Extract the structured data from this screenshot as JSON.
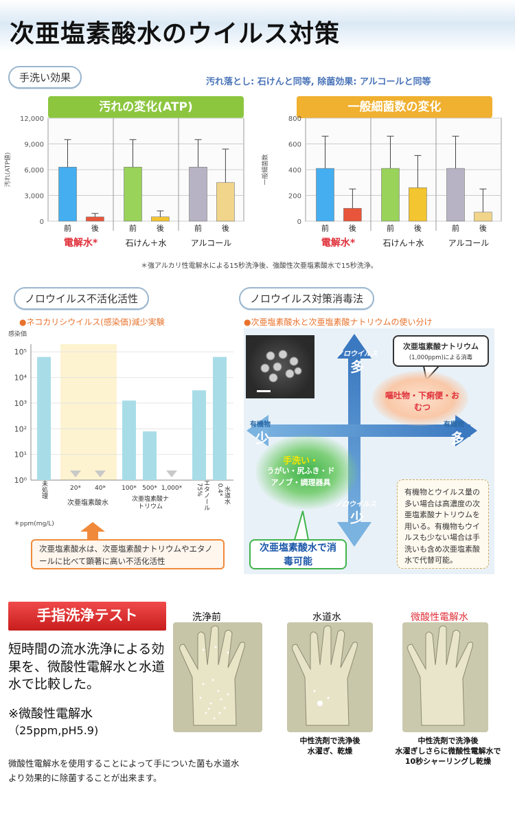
{
  "title": "次亜塩素酸水のウイルス対策",
  "section1": {
    "pill": "手洗い効果",
    "subhead": "汚れ落とし: 石けんと同等, 除菌効果: アルコールと同等",
    "footnote": "＊強アルカリ性電解水による15秒洗浄後、強酸性次亜塩素酸水で15秒洗浄。",
    "charts": [
      {
        "type": "bar",
        "title": "汚れの変化(ATP)",
        "title_color": "#8cc63f",
        "ylabel": "汚れ(ATP値)",
        "yticks": [
          "12,000",
          "9,000",
          "6,000",
          "3,000",
          "0"
        ],
        "ylim": [
          0,
          12000
        ],
        "bar_labels": [
          "前",
          "後",
          "前",
          "後",
          "前",
          "後"
        ],
        "groups": [
          "電解水*",
          "石けん＋水",
          "アルコール"
        ],
        "values": [
          6300,
          500,
          6300,
          500,
          6300,
          4500
        ],
        "errors": [
          3200,
          400,
          3200,
          700,
          3200,
          3900
        ],
        "colors": [
          "#45aef0",
          "#e8553a",
          "#99d35a",
          "#f3c530",
          "#b8b3c4",
          "#f1d58a"
        ]
      },
      {
        "type": "bar",
        "title": "一般細菌数の変化",
        "title_color": "#f0b030",
        "ylabel": "一般細菌数",
        "yticks": [
          "800",
          "600",
          "400",
          "200",
          "0"
        ],
        "ylim": [
          0,
          800
        ],
        "bar_labels": [
          "前",
          "後",
          "前",
          "後",
          "前",
          "後"
        ],
        "groups": [
          "電解水*",
          "石けん＋水",
          "アルコール"
        ],
        "values": [
          410,
          100,
          410,
          260,
          410,
          70
        ],
        "errors": [
          250,
          150,
          250,
          250,
          250,
          180
        ],
        "colors": [
          "#45aef0",
          "#e8553a",
          "#99d35a",
          "#f3c530",
          "#b8b3c4",
          "#f1d58a"
        ]
      }
    ]
  },
  "section2": {
    "pill": "ノロウイルス不活化活性",
    "bullet": "●ネコカリシウイルス(感染価)減少実験",
    "chart_data": {
      "type": "bar",
      "ylabel": "感染価",
      "yticks": [
        "10⁵",
        "10⁴",
        "10³",
        "10²",
        "10¹",
        "10⁰"
      ],
      "log_scale": true,
      "ylim": [
        0,
        5.3
      ],
      "categories": [
        "未処理",
        "20*",
        "40*",
        "100*",
        "500*",
        "1,000*",
        "75%",
        "0.4*"
      ],
      "values": [
        4.8,
        0,
        0,
        3.1,
        1.9,
        0,
        3.5,
        4.8
      ],
      "group_labels": [
        "次亜塩素酸水",
        "次亜塩素酸ナトリウム",
        "エタノール",
        "水道水"
      ],
      "unit_note": "＊ppm(mg/L)"
    },
    "callout": "次亜塩素酸水は、次亜塩素酸ナトリウムやエタノールに比べて顕著に高い不活化活性"
  },
  "section3": {
    "pill": "ノロウイルス対策消毒法",
    "bullet": "●次亜塩素酸水と次亜塩素酸ナトリウムの使い分け",
    "axis_top_label": "ノロウイルス",
    "axis_top_value": "多",
    "axis_bottom_label": "ノロウイルス",
    "axis_bottom_value": "少",
    "axis_left_label": "有機物",
    "axis_left_value": "少",
    "axis_right_label": "有機物",
    "axis_right_value": "多",
    "sodium_box_title": "次亜塩素酸ナトリウム",
    "sodium_box_sub": "(1,000ppm)による消毒",
    "orange_blob": "嘔吐物・下痢便・おむつ",
    "green_blob_title": "手洗い・",
    "green_blob_body": "うがい・尻ふき・ドアノブ・調理器具",
    "hypo_box": "次亜塩素酸水で消毒可能",
    "note": "有機物とウイルス量の多い場合は高濃度の次亜塩素酸ナトリウムを用いる。有機物もウイルスも少ない場合は手洗いも含め次亜塩素酸水で代替可能。"
  },
  "section4": {
    "button": "手指洗浄テスト",
    "desc": "短時間の流水洗浄による効果を、微酸性電解水と水道水で比較した。",
    "note_title": "※微酸性電解水",
    "note_sub": "（25ppm,pH5.9)",
    "bottom_text": "微酸性電解水を使用することによって手についた菌も水道水より効果的に除菌することが出来ます。",
    "panels": [
      {
        "label": "洗浄前",
        "caption1": "",
        "caption2": "",
        "caption3": ""
      },
      {
        "label": "水道水",
        "caption1": "中性洗剤で洗浄後",
        "caption2": "水濯ぎ、乾燥",
        "caption3": ""
      },
      {
        "label": "微酸性電解水",
        "caption1": "中性洗剤で洗浄後",
        "caption2": "水濯ぎしさらに微酸性電解水で",
        "caption3": "10秒シャーリングし乾燥"
      }
    ]
  }
}
